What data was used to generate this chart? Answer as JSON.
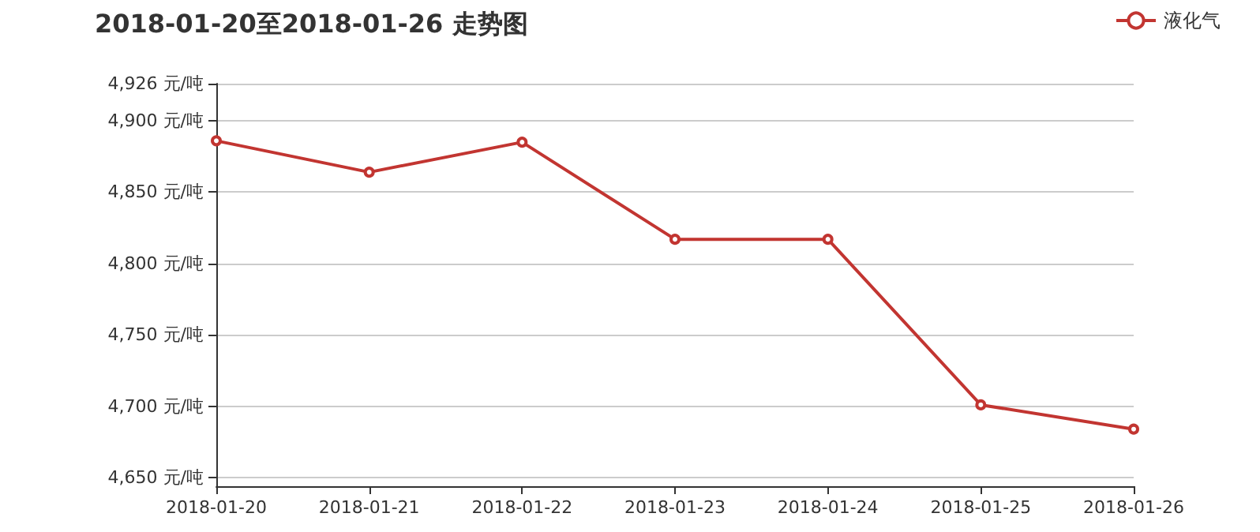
{
  "chart_data": {
    "type": "line",
    "title": "2018-01-20至2018-01-26 走势图",
    "categories": [
      "2018-01-20",
      "2018-01-21",
      "2018-01-22",
      "2018-01-23",
      "2018-01-24",
      "2018-01-25",
      "2018-01-26"
    ],
    "series": [
      {
        "name": "液化气",
        "color": "#c23531",
        "values": [
          4886,
          4864,
          4885,
          4817,
          4817,
          4701,
          4684
        ]
      }
    ],
    "ylim": [
      4644,
      4926
    ],
    "yticks": [
      {
        "value": 4650,
        "label": "4,650 元/吨"
      },
      {
        "value": 4700,
        "label": "4,700 元/吨"
      },
      {
        "value": 4750,
        "label": "4,750 元/吨"
      },
      {
        "value": 4800,
        "label": "4,800 元/吨"
      },
      {
        "value": 4850,
        "label": "4,850 元/吨"
      },
      {
        "value": 4900,
        "label": "4,900 元/吨"
      },
      {
        "value": 4926,
        "label": "4,926 元/吨"
      }
    ],
    "grid": "y",
    "legend": "top right",
    "marker": "circle",
    "line_style": "solid"
  }
}
